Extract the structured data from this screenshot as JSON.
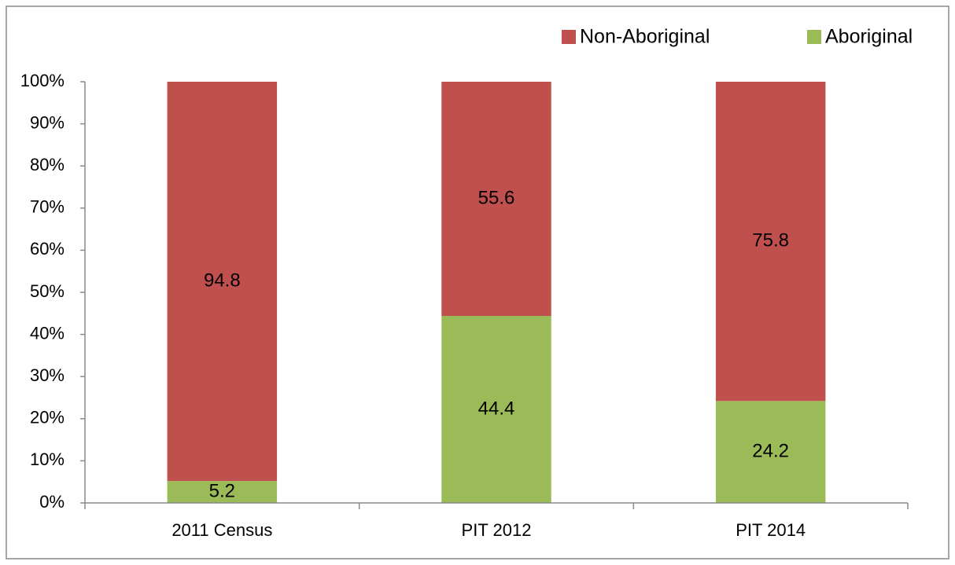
{
  "chart_data": {
    "type": "stacked_bar",
    "categories": [
      "2011 Census",
      "PIT 2012",
      "PIT 2014"
    ],
    "series": [
      {
        "name": "Non-Aboriginal",
        "color": "#c0504d",
        "values": [
          94.8,
          55.6,
          75.8
        ]
      },
      {
        "name": "Aboriginal",
        "color": "#9bbb59",
        "values": [
          5.2,
          44.4,
          24.2
        ]
      }
    ],
    "ylim": [
      0,
      100
    ],
    "yticks": [
      {
        "value": 0,
        "label": "0%"
      },
      {
        "value": 10,
        "label": "10%"
      },
      {
        "value": 20,
        "label": "20%"
      },
      {
        "value": 30,
        "label": "30%"
      },
      {
        "value": 40,
        "label": "40%"
      },
      {
        "value": 50,
        "label": "50%"
      },
      {
        "value": 60,
        "label": "60%"
      },
      {
        "value": 70,
        "label": "70%"
      },
      {
        "value": 80,
        "label": "80%"
      },
      {
        "value": 90,
        "label": "90%"
      },
      {
        "value": 100,
        "label": "100%"
      }
    ],
    "legend": "top-right",
    "grid": false
  }
}
